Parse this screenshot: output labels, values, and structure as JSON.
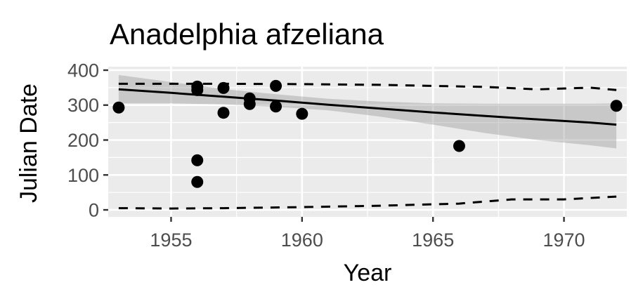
{
  "chart_data": {
    "type": "scatter",
    "title": "Anadelphia afzeliana",
    "xlabel": "Year",
    "ylabel": "Julian Date",
    "xlim": [
      1952.6,
      1972.4
    ],
    "ylim": [
      -20,
      410
    ],
    "xticks": [
      1955,
      1960,
      1965,
      1970
    ],
    "yticks": [
      0,
      100,
      200,
      300,
      400
    ],
    "grid": true,
    "panel_background": "#ebebeb",
    "point_color": "#000000",
    "points": [
      {
        "x": 1953,
        "y": 293
      },
      {
        "x": 1956,
        "y": 353
      },
      {
        "x": 1956,
        "y": 343
      },
      {
        "x": 1956,
        "y": 142
      },
      {
        "x": 1956,
        "y": 80
      },
      {
        "x": 1957,
        "y": 349
      },
      {
        "x": 1957,
        "y": 278
      },
      {
        "x": 1958,
        "y": 319
      },
      {
        "x": 1958,
        "y": 303
      },
      {
        "x": 1959,
        "y": 355
      },
      {
        "x": 1959,
        "y": 296
      },
      {
        "x": 1960,
        "y": 275
      },
      {
        "x": 1966,
        "y": 183
      },
      {
        "x": 1972,
        "y": 298
      }
    ],
    "fit_line": {
      "x": [
        1953,
        1955,
        1957,
        1959,
        1961,
        1963,
        1965,
        1967,
        1969,
        1971,
        1972
      ],
      "y": [
        345,
        335,
        324,
        313,
        301,
        290,
        279,
        269,
        259,
        250,
        244
      ]
    },
    "confidence_band": {
      "x": [
        1953,
        1955,
        1957,
        1959,
        1961,
        1963,
        1965,
        1967,
        1969,
        1971,
        1972
      ],
      "upper": [
        386,
        366,
        346,
        331,
        318,
        310,
        305,
        304,
        304,
        304,
        305
      ],
      "lower": [
        305,
        305,
        302,
        295,
        285,
        267,
        244,
        220,
        200,
        185,
        176
      ]
    },
    "upper_dashed": {
      "x": [
        1953,
        1957,
        1960,
        1963,
        1965,
        1967,
        1969,
        1971,
        1972
      ],
      "y": [
        361,
        361,
        360,
        358,
        355,
        352,
        345,
        350,
        343
      ]
    },
    "lower_dashed": {
      "x": [
        1953,
        1955,
        1957,
        1960,
        1963,
        1966,
        1968,
        1970,
        1972
      ],
      "y": [
        5,
        4,
        5,
        8,
        12,
        18,
        30,
        30,
        38
      ]
    }
  }
}
